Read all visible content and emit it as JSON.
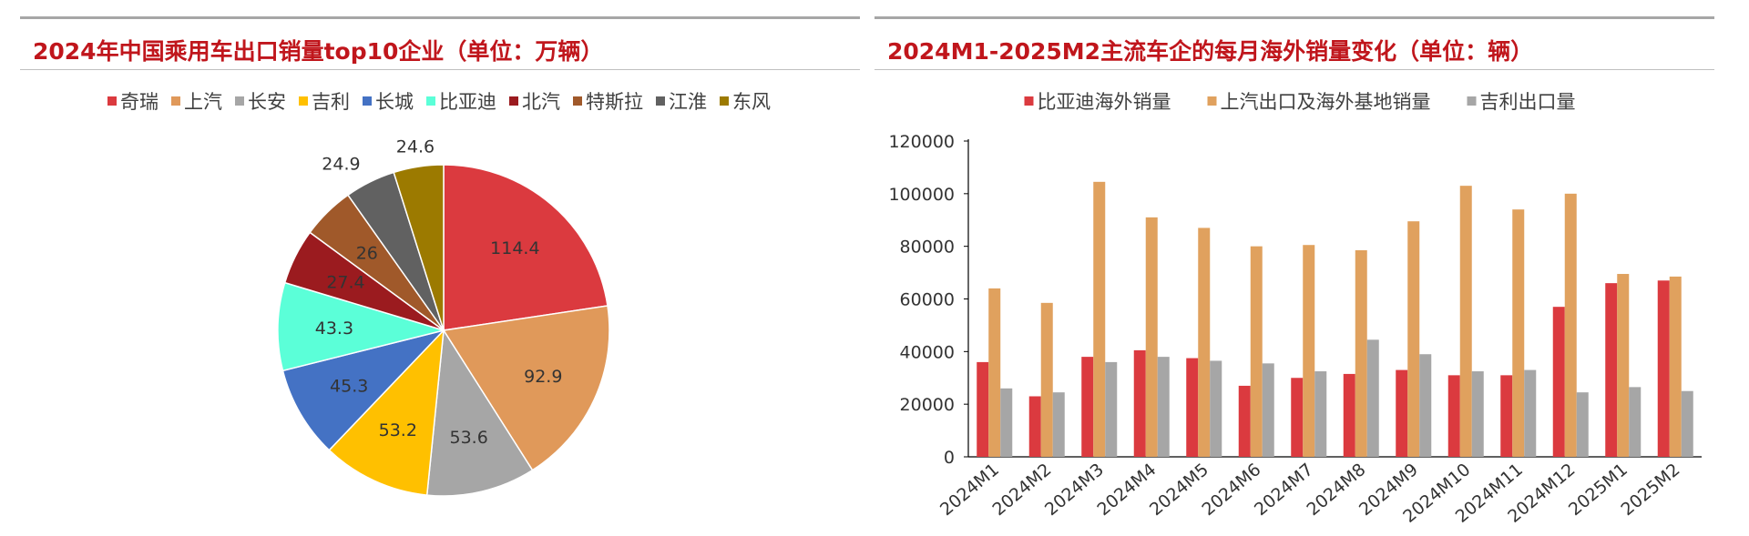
{
  "left": {
    "title": "2024年中国乘用车出口销量top10企业（单位：万辆）"
  },
  "right": {
    "title": "2024M1-2025M2主流车企的每月海外销量变化（单位：辆）"
  },
  "chart_data": [
    {
      "type": "pie",
      "title": "2024年中国乘用车出口销量top10企业（单位：万辆）",
      "legend_position": "top",
      "slices": [
        {
          "label": "奇瑞",
          "value": 114.4,
          "color": "#db3a3f"
        },
        {
          "label": "上汽",
          "value": 92.9,
          "color": "#e0995a"
        },
        {
          "label": "长安",
          "value": 53.6,
          "color": "#a6a6a6"
        },
        {
          "label": "吉利",
          "value": 53.2,
          "color": "#ffc000"
        },
        {
          "label": "长城",
          "value": 45.3,
          "color": "#4472c4"
        },
        {
          "label": "比亚迪",
          "value": 43.3,
          "color": "#5bffd8"
        },
        {
          "label": "北汽",
          "value": 27.4,
          "color": "#9b1b1f"
        },
        {
          "label": "特斯拉",
          "value": 26,
          "color": "#a0592a"
        },
        {
          "label": "江淮",
          "value": 24.9,
          "color": "#616161"
        },
        {
          "label": "东风",
          "value": 24.6,
          "color": "#9c7a00"
        }
      ]
    },
    {
      "type": "bar",
      "title": "2024M1-2025M2主流车企的每月海外销量变化（单位：辆）",
      "legend_position": "top",
      "categories": [
        "2024M1",
        "2024M2",
        "2024M3",
        "2024M4",
        "2024M5",
        "2024M6",
        "2024M7",
        "2024M8",
        "2024M9",
        "2024M10",
        "2024M11",
        "2024M12",
        "2025M1",
        "2025M2"
      ],
      "ylim": [
        0,
        120000
      ],
      "yticks": [
        0,
        20000,
        40000,
        60000,
        80000,
        100000,
        120000
      ],
      "grid": false,
      "series": [
        {
          "name": "比亚迪海外销量",
          "color": "#db3a3f",
          "values": [
            36000,
            23000,
            38000,
            40500,
            37500,
            27000,
            30000,
            31500,
            33000,
            31000,
            31000,
            57000,
            66000,
            67000
          ]
        },
        {
          "name": "上汽出口及海外基地销量",
          "color": "#e0a15e",
          "values": [
            64000,
            58500,
            104500,
            91000,
            87000,
            80000,
            80500,
            78500,
            89500,
            103000,
            94000,
            100000,
            69500,
            68500
          ]
        },
        {
          "name": "吉利出口量",
          "color": "#a6a6a6",
          "values": [
            26000,
            24500,
            36000,
            38000,
            36500,
            35500,
            32500,
            44500,
            39000,
            32500,
            33000,
            24500,
            26500,
            25000
          ]
        }
      ]
    }
  ]
}
